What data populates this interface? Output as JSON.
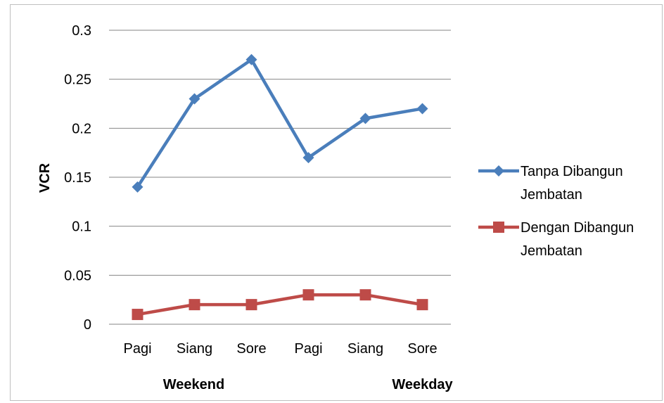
{
  "chart_data": {
    "type": "line",
    "categories": [
      "Pagi",
      "Siang",
      "Sore",
      "Pagi",
      "Siang",
      "Sore"
    ],
    "groups": [
      {
        "label": "Weekend",
        "categories": [
          0,
          1,
          2
        ]
      },
      {
        "label": "Weekday",
        "categories": [
          3,
          4,
          5
        ]
      }
    ],
    "series": [
      {
        "name_lines": [
          "Tanpa Dibangun",
          "Jembatan"
        ],
        "values": [
          0.14,
          0.23,
          0.27,
          0.17,
          0.21,
          0.22
        ],
        "color": "#4a7ebb",
        "marker": "diamond"
      },
      {
        "name_lines": [
          "Dengan Dibangun",
          "Jembatan"
        ],
        "values": [
          0.01,
          0.02,
          0.02,
          0.03,
          0.03,
          0.02
        ],
        "color": "#be4b48",
        "marker": "square"
      }
    ],
    "ylabel": "VCR",
    "ylim": [
      0,
      0.3
    ],
    "yticks": [
      "0",
      "0.05",
      "0.1",
      "0.15",
      "0.2",
      "0.25",
      "0.3"
    ],
    "grid": true,
    "legend_position": "right"
  }
}
